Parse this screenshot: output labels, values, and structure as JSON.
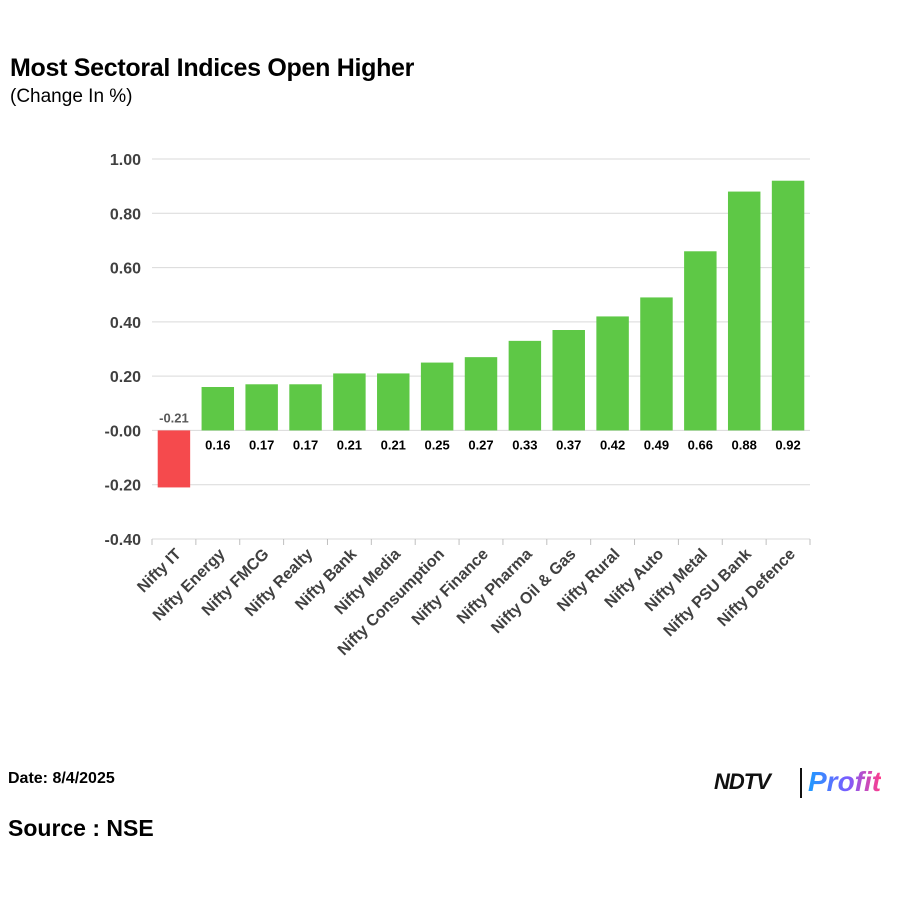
{
  "title": "Most Sectoral Indices Open Higher",
  "subtitle": "(Change In %)",
  "footer": {
    "date": "Date: 8/4/2025",
    "source": "Source : NSE"
  },
  "logo": {
    "ndtv": "NDTV",
    "profit": "Profit"
  },
  "colors": {
    "positive": "#5ec846",
    "negative": "#f54a4d",
    "grid": "#d9d9d9"
  },
  "chart_data": {
    "type": "bar",
    "title": "Most Sectoral Indices Open Higher",
    "subtitle": "(Change In %)",
    "categories": [
      "Nifty IT",
      "Nifty Energy",
      "Nifty FMCG",
      "Nifty Realty",
      "Nifty Bank",
      "Nifty Media",
      "Nifty Consumption",
      "Nifty Finance",
      "Nifty Pharma",
      "Nifty Oil & Gas",
      "Nifty Rural",
      "Nifty Auto",
      "Nifty Metal",
      "Nifty PSU Bank",
      "Nifty Defence"
    ],
    "values": [
      -0.21,
      0.16,
      0.17,
      0.17,
      0.21,
      0.21,
      0.25,
      0.27,
      0.33,
      0.37,
      0.42,
      0.49,
      0.66,
      0.88,
      0.92
    ],
    "data_labels": [
      "-0.21",
      "0.16",
      "0.17",
      "0.17",
      "0.21",
      "0.21",
      "0.25",
      "0.27",
      "0.33",
      "0.37",
      "0.42",
      "0.49",
      "0.66",
      "0.88",
      "0.92"
    ],
    "ylim": [
      -0.4,
      1.0
    ],
    "yticks": [
      1.0,
      0.8,
      0.6,
      0.4,
      0.2,
      0.0,
      -0.2,
      -0.4
    ],
    "ytick_labels": [
      "1.00",
      "0.80",
      "0.60",
      "0.40",
      "0.20",
      "-0.00",
      "-0.20",
      "-0.40"
    ],
    "grid": true,
    "legend": "none"
  }
}
